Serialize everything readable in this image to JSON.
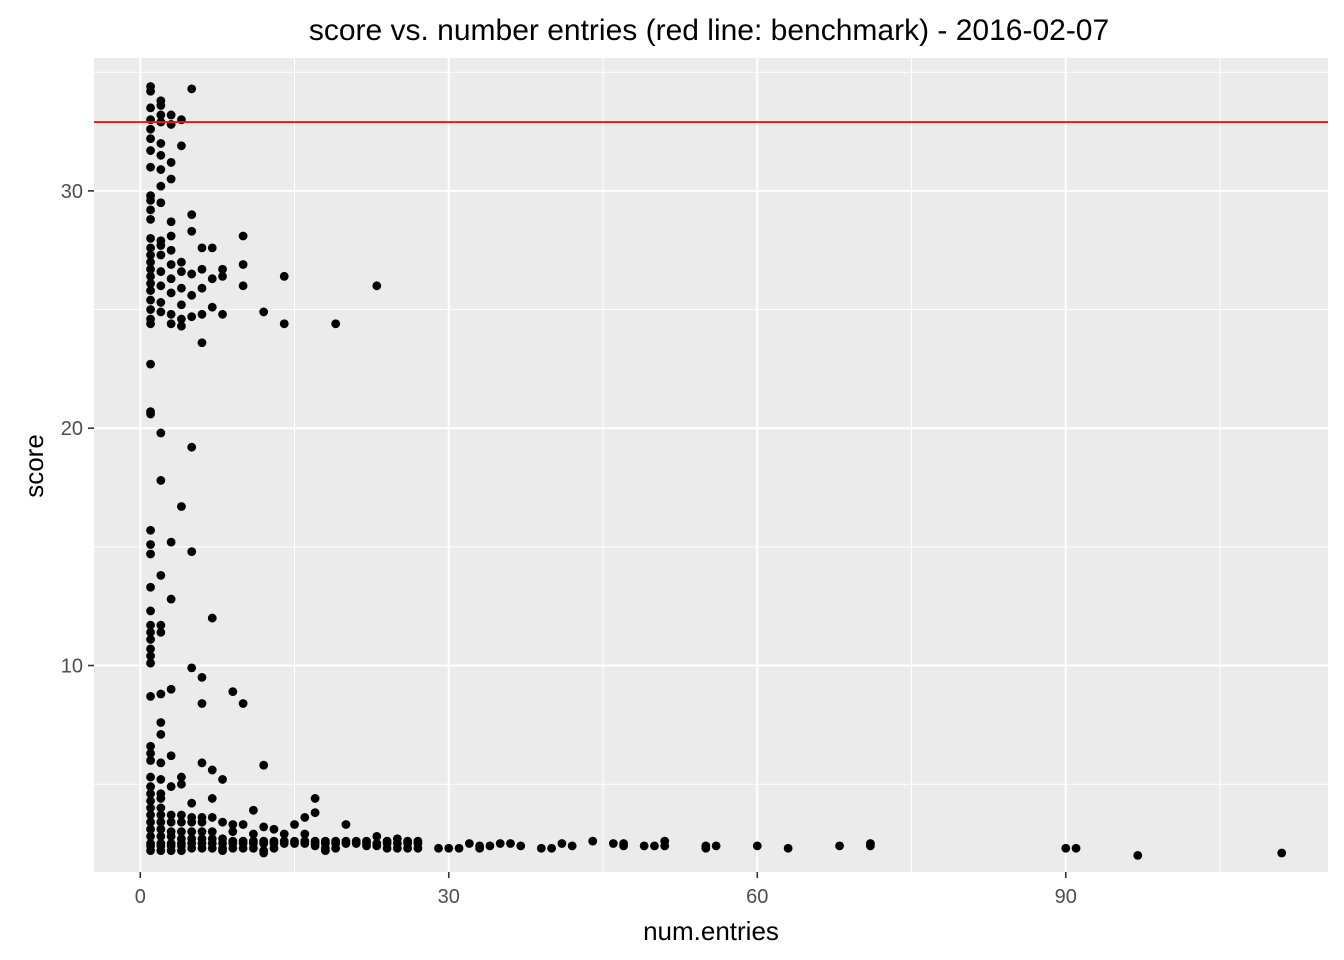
{
  "chart_data": {
    "type": "scatter",
    "title": "score vs. number entries (red line: benchmark) - 2016-02-07",
    "xlabel": "num.entries",
    "ylabel": "score",
    "xlim": [
      -4.5,
      115.5
    ],
    "ylim": [
      1.3,
      35.6
    ],
    "x_ticks": [
      0,
      30,
      60,
      90
    ],
    "y_ticks": [
      10,
      20,
      30
    ],
    "grid": true,
    "background_color": "#ebebeb",
    "grid_color": "#ffffff",
    "point_color": "#000000",
    "benchmark": {
      "y": 32.9,
      "color": "#e31a1c"
    },
    "points": [
      [
        1,
        34.4
      ],
      [
        1,
        34.2
      ],
      [
        2,
        33.8
      ],
      [
        2,
        33.6
      ],
      [
        5,
        34.3
      ],
      [
        1,
        33.5
      ],
      [
        2,
        33.2
      ],
      [
        3,
        33.2
      ],
      [
        4,
        33.0
      ],
      [
        1,
        33.0
      ],
      [
        2,
        32.9
      ],
      [
        3,
        32.8
      ],
      [
        1,
        32.6
      ],
      [
        1,
        32.2
      ],
      [
        2,
        32.0
      ],
      [
        4,
        31.9
      ],
      [
        1,
        31.7
      ],
      [
        2,
        31.5
      ],
      [
        3,
        31.2
      ],
      [
        1,
        31.0
      ],
      [
        2,
        30.9
      ],
      [
        3,
        30.5
      ],
      [
        2,
        30.2
      ],
      [
        1,
        29.8
      ],
      [
        1,
        29.6
      ],
      [
        2,
        29.5
      ],
      [
        5,
        29.0
      ],
      [
        1,
        29.2
      ],
      [
        1,
        28.8
      ],
      [
        3,
        28.7
      ],
      [
        5,
        28.3
      ],
      [
        1,
        28.0
      ],
      [
        2,
        27.9
      ],
      [
        3,
        28.1
      ],
      [
        10,
        28.1
      ],
      [
        1,
        27.6
      ],
      [
        2,
        27.7
      ],
      [
        3,
        27.5
      ],
      [
        6,
        27.6
      ],
      [
        7,
        27.6
      ],
      [
        1,
        27.3
      ],
      [
        2,
        27.3
      ],
      [
        4,
        27.0
      ],
      [
        1,
        27.0
      ],
      [
        3,
        26.9
      ],
      [
        10,
        26.9
      ],
      [
        8,
        26.7
      ],
      [
        1,
        26.7
      ],
      [
        2,
        26.6
      ],
      [
        4,
        26.6
      ],
      [
        5,
        26.5
      ],
      [
        6,
        26.7
      ],
      [
        1,
        26.4
      ],
      [
        3,
        26.3
      ],
      [
        7,
        26.3
      ],
      [
        8,
        26.4
      ],
      [
        14,
        26.4
      ],
      [
        1,
        26.1
      ],
      [
        2,
        26.0
      ],
      [
        4,
        25.9
      ],
      [
        6,
        25.9
      ],
      [
        10,
        26.0
      ],
      [
        23,
        26.0
      ],
      [
        1,
        25.8
      ],
      [
        3,
        25.7
      ],
      [
        5,
        25.6
      ],
      [
        1,
        25.4
      ],
      [
        2,
        25.3
      ],
      [
        4,
        25.2
      ],
      [
        7,
        25.1
      ],
      [
        1,
        25.0
      ],
      [
        2,
        24.9
      ],
      [
        3,
        24.8
      ],
      [
        6,
        24.8
      ],
      [
        8,
        24.8
      ],
      [
        12,
        24.9
      ],
      [
        1,
        24.6
      ],
      [
        4,
        24.6
      ],
      [
        5,
        24.7
      ],
      [
        1,
        24.4
      ],
      [
        3,
        24.4
      ],
      [
        4,
        24.3
      ],
      [
        14,
        24.4
      ],
      [
        19,
        24.4
      ],
      [
        6,
        23.6
      ],
      [
        1,
        22.7
      ],
      [
        1,
        20.7
      ],
      [
        1,
        20.6
      ],
      [
        2,
        19.8
      ],
      [
        5,
        19.2
      ],
      [
        2,
        17.8
      ],
      [
        4,
        16.7
      ],
      [
        1,
        15.7
      ],
      [
        1,
        15.1
      ],
      [
        3,
        15.2
      ],
      [
        1,
        14.7
      ],
      [
        5,
        14.8
      ],
      [
        2,
        13.8
      ],
      [
        1,
        13.3
      ],
      [
        3,
        12.8
      ],
      [
        1,
        12.3
      ],
      [
        7,
        12.0
      ],
      [
        1,
        11.7
      ],
      [
        2,
        11.7
      ],
      [
        1,
        11.4
      ],
      [
        2,
        11.4
      ],
      [
        1,
        11.1
      ],
      [
        1,
        10.7
      ],
      [
        1,
        10.4
      ],
      [
        1,
        10.1
      ],
      [
        5,
        9.9
      ],
      [
        6,
        9.5
      ],
      [
        3,
        9.0
      ],
      [
        9,
        8.9
      ],
      [
        1,
        8.7
      ],
      [
        2,
        8.8
      ],
      [
        6,
        8.4
      ],
      [
        10,
        8.4
      ],
      [
        2,
        7.6
      ],
      [
        2,
        7.1
      ],
      [
        1,
        6.6
      ],
      [
        1,
        6.3
      ],
      [
        3,
        6.2
      ],
      [
        1,
        6.0
      ],
      [
        2,
        5.9
      ],
      [
        6,
        5.9
      ],
      [
        12,
        5.8
      ],
      [
        7,
        5.6
      ],
      [
        1,
        5.3
      ],
      [
        2,
        5.2
      ],
      [
        4,
        5.3
      ],
      [
        8,
        5.2
      ],
      [
        1,
        4.9
      ],
      [
        3,
        4.9
      ],
      [
        4,
        5.0
      ],
      [
        1,
        4.6
      ],
      [
        2,
        4.6
      ],
      [
        1,
        4.3
      ],
      [
        2,
        4.4
      ],
      [
        7,
        4.4
      ],
      [
        17,
        4.4
      ],
      [
        5,
        4.2
      ],
      [
        1,
        4.0
      ],
      [
        2,
        4.0
      ],
      [
        11,
        3.9
      ],
      [
        17,
        3.8
      ],
      [
        1,
        3.7
      ],
      [
        2,
        3.7
      ],
      [
        3,
        3.7
      ],
      [
        4,
        3.7
      ],
      [
        5,
        3.6
      ],
      [
        6,
        3.6
      ],
      [
        7,
        3.6
      ],
      [
        16,
        3.6
      ],
      [
        1,
        3.4
      ],
      [
        2,
        3.4
      ],
      [
        3,
        3.4
      ],
      [
        4,
        3.4
      ],
      [
        5,
        3.4
      ],
      [
        6,
        3.4
      ],
      [
        8,
        3.4
      ],
      [
        9,
        3.3
      ],
      [
        10,
        3.3
      ],
      [
        15,
        3.3
      ],
      [
        20,
        3.3
      ],
      [
        12,
        3.2
      ],
      [
        13,
        3.1
      ],
      [
        1,
        3.1
      ],
      [
        2,
        3.1
      ],
      [
        3,
        3.0
      ],
      [
        4,
        3.0
      ],
      [
        5,
        3.0
      ],
      [
        6,
        3.0
      ],
      [
        7,
        3.0
      ],
      [
        9,
        3.0
      ],
      [
        11,
        2.9
      ],
      [
        14,
        2.9
      ],
      [
        16,
        2.9
      ],
      [
        23,
        2.8
      ],
      [
        25,
        2.7
      ],
      [
        1,
        2.8
      ],
      [
        2,
        2.8
      ],
      [
        3,
        2.8
      ],
      [
        4,
        2.7
      ],
      [
        5,
        2.7
      ],
      [
        6,
        2.7
      ],
      [
        7,
        2.7
      ],
      [
        8,
        2.7
      ],
      [
        9,
        2.6
      ],
      [
        10,
        2.6
      ],
      [
        11,
        2.6
      ],
      [
        12,
        2.6
      ],
      [
        13,
        2.6
      ],
      [
        14,
        2.6
      ],
      [
        15,
        2.6
      ],
      [
        16,
        2.6
      ],
      [
        17,
        2.6
      ],
      [
        18,
        2.6
      ],
      [
        19,
        2.6
      ],
      [
        20,
        2.6
      ],
      [
        21,
        2.6
      ],
      [
        22,
        2.6
      ],
      [
        24,
        2.6
      ],
      [
        26,
        2.6
      ],
      [
        27,
        2.6
      ],
      [
        1,
        2.5
      ],
      [
        2,
        2.5
      ],
      [
        3,
        2.5
      ],
      [
        4,
        2.5
      ],
      [
        5,
        2.5
      ],
      [
        6,
        2.5
      ],
      [
        7,
        2.5
      ],
      [
        8,
        2.5
      ],
      [
        9,
        2.5
      ],
      [
        10,
        2.5
      ],
      [
        11,
        2.5
      ],
      [
        12,
        2.5
      ],
      [
        13,
        2.5
      ],
      [
        14,
        2.5
      ],
      [
        15,
        2.5
      ],
      [
        16,
        2.5
      ],
      [
        17,
        2.5
      ],
      [
        18,
        2.5
      ],
      [
        19,
        2.5
      ],
      [
        20,
        2.5
      ],
      [
        21,
        2.5
      ],
      [
        22,
        2.5
      ],
      [
        23,
        2.5
      ],
      [
        24,
        2.5
      ],
      [
        25,
        2.5
      ],
      [
        26,
        2.5
      ],
      [
        27,
        2.5
      ],
      [
        1,
        2.4
      ],
      [
        2,
        2.4
      ],
      [
        3,
        2.4
      ],
      [
        4,
        2.4
      ],
      [
        5,
        2.3
      ],
      [
        6,
        2.3
      ],
      [
        7,
        2.3
      ],
      [
        8,
        2.3
      ],
      [
        9,
        2.3
      ],
      [
        10,
        2.3
      ],
      [
        11,
        2.3
      ],
      [
        12,
        2.2
      ],
      [
        13,
        2.3
      ],
      [
        17,
        2.4
      ],
      [
        18,
        2.3
      ],
      [
        19,
        2.3
      ],
      [
        22,
        2.4
      ],
      [
        23,
        2.4
      ],
      [
        24,
        2.3
      ],
      [
        25,
        2.3
      ],
      [
        26,
        2.3
      ],
      [
        27,
        2.3
      ],
      [
        1,
        2.2
      ],
      [
        2,
        2.2
      ],
      [
        3,
        2.2
      ],
      [
        4,
        2.2
      ],
      [
        8,
        2.2
      ],
      [
        12,
        2.1
      ],
      [
        18,
        2.2
      ],
      [
        29,
        2.3
      ],
      [
        30,
        2.3
      ],
      [
        31,
        2.3
      ],
      [
        32,
        2.5
      ],
      [
        33,
        2.4
      ],
      [
        33,
        2.3
      ],
      [
        34,
        2.4
      ],
      [
        35,
        2.5
      ],
      [
        36,
        2.5
      ],
      [
        37,
        2.4
      ],
      [
        39,
        2.3
      ],
      [
        40,
        2.3
      ],
      [
        41,
        2.5
      ],
      [
        42,
        2.4
      ],
      [
        44,
        2.6
      ],
      [
        46,
        2.5
      ],
      [
        47,
        2.5
      ],
      [
        47,
        2.4
      ],
      [
        49,
        2.4
      ],
      [
        50,
        2.4
      ],
      [
        51,
        2.6
      ],
      [
        51,
        2.4
      ],
      [
        55,
        2.4
      ],
      [
        55,
        2.3
      ],
      [
        56,
        2.4
      ],
      [
        60,
        2.4
      ],
      [
        63,
        2.3
      ],
      [
        68,
        2.4
      ],
      [
        71,
        2.5
      ],
      [
        71,
        2.4
      ],
      [
        90,
        2.3
      ],
      [
        91,
        2.3
      ],
      [
        97,
        2.0
      ],
      [
        111,
        2.1
      ]
    ]
  }
}
